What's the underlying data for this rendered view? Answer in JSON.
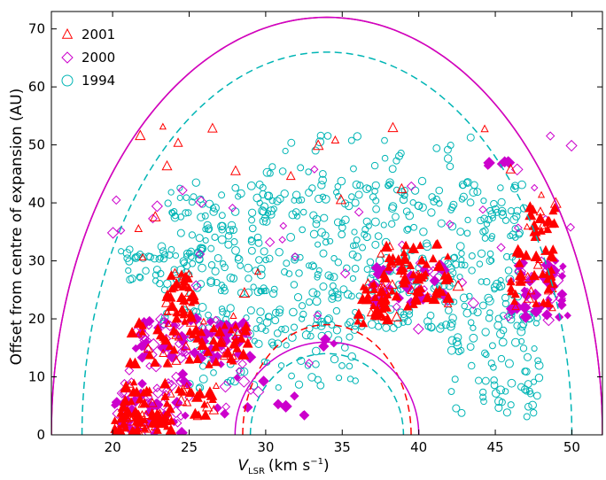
{
  "chart_data": {
    "type": "scatter",
    "title": "",
    "xlabel": "V",
    "xlabel_sub": "LSR",
    "xlabel_units": "(km s",
    "xlabel_exp": "−1",
    "xlabel_close": ")",
    "ylabel": "Offset from centre of expansion (AU)",
    "xlim": [
      16,
      52
    ],
    "ylim": [
      0,
      73
    ],
    "x_ticks": [
      20,
      25,
      30,
      35,
      40,
      45,
      50
    ],
    "y_ticks": [
      0,
      10,
      20,
      30,
      40,
      50,
      60,
      70
    ],
    "x_tick_labels": [
      "20",
      "25",
      "30",
      "35",
      "40",
      "45",
      "50"
    ],
    "y_tick_labels": [
      "0",
      "10",
      "20",
      "30",
      "40",
      "50",
      "60",
      "70"
    ],
    "legend": {
      "position": "top-left",
      "entries": [
        {
          "label": "2001",
          "marker": "triangle",
          "color": "#ff0000"
        },
        {
          "label": "2000",
          "marker": "diamond",
          "color": "#cc00cc"
        },
        {
          "label": "1994",
          "marker": "circle",
          "color": "#00b5b5"
        }
      ]
    },
    "curves": [
      {
        "name": "outer-shell-2001",
        "style": "solid",
        "color": "#ff0000",
        "center": 34,
        "half_width": 18,
        "height": 72
      },
      {
        "name": "outer-shell-2000",
        "style": "solid",
        "color": "#cc00cc",
        "center": 34,
        "half_width": 18,
        "height": 72
      },
      {
        "name": "outer-shell-1994",
        "style": "dashed",
        "color": "#00b5b5",
        "center": 34,
        "half_width": 16,
        "height": 66
      },
      {
        "name": "inner-shell-2001",
        "style": "dashed",
        "color": "#ff0000",
        "center": 34,
        "half_width": 5.5,
        "height": 19
      },
      {
        "name": "inner-shell-2000",
        "style": "solid",
        "color": "#cc00cc",
        "center": 34,
        "half_width": 6,
        "height": 16
      },
      {
        "name": "inner-shell-1994",
        "style": "dashed",
        "color": "#00b5b5",
        "center": 34,
        "half_width": 5,
        "height": 14
      }
    ],
    "series": [
      {
        "name": "2001",
        "marker": "triangle",
        "color": "#ff0000",
        "clusters": [
          {
            "x": [
              20,
              24
            ],
            "y": [
              0,
              4
            ],
            "density": 60,
            "filled": 0.8
          },
          {
            "x": [
              20.5,
              27
            ],
            "y": [
              3,
              9
            ],
            "density": 55,
            "filled": 0.7
          },
          {
            "x": [
              21,
              29
            ],
            "y": [
              12,
              20
            ],
            "density": 70,
            "filled": 0.75
          },
          {
            "x": [
              23.5,
              25.5
            ],
            "y": [
              20,
              28
            ],
            "density": 40,
            "filled": 0.8
          },
          {
            "x": [
              36,
              38
            ],
            "y": [
              19,
              26
            ],
            "density": 30,
            "filled": 0.8
          },
          {
            "x": [
              37.5,
              42
            ],
            "y": [
              22,
              33
            ],
            "density": 70,
            "filled": 0.85
          },
          {
            "x": [
              46,
              49
            ],
            "y": [
              22,
              32
            ],
            "density": 40,
            "filled": 0.8
          },
          {
            "x": [
              47,
              49
            ],
            "y": [
              34,
              40
            ],
            "density": 20,
            "filled": 0.8
          },
          {
            "x": [
              21,
              49
            ],
            "y": [
              20,
              55
            ],
            "density": 30,
            "filled": 0
          }
        ]
      },
      {
        "name": "2000",
        "marker": "diamond",
        "color": "#cc00cc",
        "clusters": [
          {
            "x": [
              20,
              25
            ],
            "y": [
              0,
              6
            ],
            "density": 40,
            "filled": 0.6
          },
          {
            "x": [
              21.5,
              29
            ],
            "y": [
              13,
              20
            ],
            "density": 90,
            "filled": 0.7
          },
          {
            "x": [
              20.5,
              25
            ],
            "y": [
              5,
              12
            ],
            "density": 30,
            "filled": 0.3
          },
          {
            "x": [
              26,
              33
            ],
            "y": [
              3,
              13
            ],
            "density": 20,
            "filled": 0.5
          },
          {
            "x": [
              33.5,
              34.5
            ],
            "y": [
              15,
              17
            ],
            "density": 3,
            "filled": 1
          },
          {
            "x": [
              37,
              42
            ],
            "y": [
              22,
              30
            ],
            "density": 45,
            "filled": 0.7
          },
          {
            "x": [
              46,
              50
            ],
            "y": [
              20,
              30
            ],
            "density": 50,
            "filled": 0.7
          },
          {
            "x": [
              44.5,
              46
            ],
            "y": [
              46,
              48
            ],
            "density": 6,
            "filled": 1
          },
          {
            "x": [
              20,
              50
            ],
            "y": [
              18,
              52
            ],
            "density": 40,
            "filled": 0
          }
        ]
      },
      {
        "name": "1994",
        "marker": "circle",
        "color": "#00b5b5",
        "clusters": [
          {
            "x": [
              23,
              47
            ],
            "y": [
              18,
              44
            ],
            "density": 520,
            "filled": 0
          },
          {
            "x": [
              25,
              36
            ],
            "y": [
              8,
              20
            ],
            "density": 80,
            "filled": 0
          },
          {
            "x": [
              42,
              48
            ],
            "y": [
              2,
              22
            ],
            "density": 80,
            "filled": 0
          },
          {
            "x": [
              30,
              44
            ],
            "y": [
              40,
              52
            ],
            "density": 40,
            "filled": 0
          },
          {
            "x": [
              20,
              26
            ],
            "y": [
              26,
              32
            ],
            "density": 40,
            "filled": 0
          }
        ]
      }
    ]
  }
}
